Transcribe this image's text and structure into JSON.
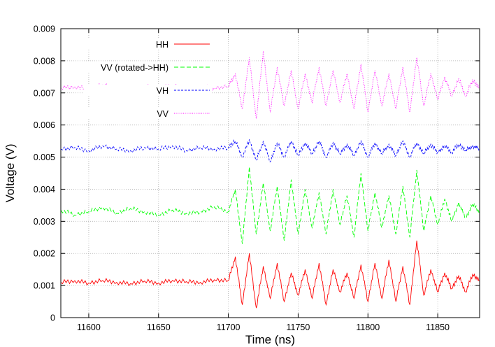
{
  "chart_data": {
    "type": "line",
    "xlabel": "Time (ns)",
    "ylabel": "Voltage (V)",
    "xlim": [
      11580,
      11880
    ],
    "ylim": [
      0,
      0.009
    ],
    "x_ticks": [
      {
        "value": 11600,
        "label": "11600"
      },
      {
        "value": 11650,
        "label": "11650"
      },
      {
        "value": 11700,
        "label": "11700"
      },
      {
        "value": 11750,
        "label": "11750"
      },
      {
        "value": 11800,
        "label": "11800"
      },
      {
        "value": 11850,
        "label": "11850"
      }
    ],
    "y_ticks": [
      {
        "value": 0,
        "label": "0"
      },
      {
        "value": 0.001,
        "label": "0.001"
      },
      {
        "value": 0.002,
        "label": "0.002"
      },
      {
        "value": 0.003,
        "label": "0.003"
      },
      {
        "value": 0.004,
        "label": "0.004"
      },
      {
        "value": 0.005,
        "label": "0.005"
      },
      {
        "value": 0.006,
        "label": "0.006"
      },
      {
        "value": 0.007,
        "label": "0.007"
      },
      {
        "value": 0.008,
        "label": "0.008"
      },
      {
        "value": 0.009,
        "label": "0.009"
      }
    ],
    "grid": true,
    "legend_position": "top-left",
    "x": [
      11580,
      11590,
      11600,
      11610,
      11620,
      11630,
      11640,
      11650,
      11660,
      11670,
      11680,
      11690,
      11700,
      11705,
      11710,
      11715,
      11720,
      11725,
      11730,
      11735,
      11740,
      11745,
      11750,
      11755,
      11760,
      11765,
      11770,
      11775,
      11780,
      11785,
      11790,
      11795,
      11800,
      11805,
      11810,
      11815,
      11820,
      11825,
      11830,
      11835,
      11840,
      11845,
      11850,
      11855,
      11860,
      11865,
      11870,
      11875,
      11880
    ],
    "series": [
      {
        "name": "HH",
        "color": "#ff0000",
        "dash": "solid",
        "values": [
          0.0011,
          0.00115,
          0.00108,
          0.00116,
          0.0011,
          0.00106,
          0.00114,
          0.00108,
          0.00116,
          0.00112,
          0.0011,
          0.00118,
          0.00115,
          0.0019,
          0.0004,
          0.002,
          0.0003,
          0.0016,
          0.0006,
          0.0017,
          0.0005,
          0.0014,
          0.0007,
          0.0015,
          0.0006,
          0.0017,
          0.0004,
          0.0015,
          0.0008,
          0.0014,
          0.0006,
          0.00165,
          0.0005,
          0.0017,
          0.0006,
          0.0018,
          0.0005,
          0.0016,
          0.0004,
          0.0024,
          0.0007,
          0.0015,
          0.0008,
          0.0014,
          0.0009,
          0.0013,
          0.0008,
          0.00135,
          0.00115
        ]
      },
      {
        "name": "VV (rotated->HH)",
        "color": "#00ff00",
        "dash": "dashed",
        "values": [
          0.00335,
          0.0032,
          0.0033,
          0.00345,
          0.00325,
          0.0034,
          0.0033,
          0.0032,
          0.00335,
          0.00325,
          0.0033,
          0.00345,
          0.0033,
          0.004,
          0.0023,
          0.0047,
          0.0026,
          0.0042,
          0.0027,
          0.0041,
          0.0024,
          0.0043,
          0.0026,
          0.004,
          0.0028,
          0.0039,
          0.0026,
          0.004,
          0.0029,
          0.0038,
          0.0025,
          0.0045,
          0.0027,
          0.0039,
          0.0028,
          0.0038,
          0.0026,
          0.0041,
          0.0025,
          0.0046,
          0.0027,
          0.0038,
          0.0029,
          0.0037,
          0.003,
          0.0036,
          0.0031,
          0.00355,
          0.0033
        ]
      },
      {
        "name": "VH",
        "color": "#0000ff",
        "dash": "short-dash",
        "values": [
          0.00525,
          0.0053,
          0.0052,
          0.00535,
          0.00525,
          0.0052,
          0.0053,
          0.00525,
          0.00535,
          0.0052,
          0.0053,
          0.00525,
          0.0053,
          0.0055,
          0.005,
          0.00555,
          0.0049,
          0.0055,
          0.00485,
          0.00545,
          0.005,
          0.0055,
          0.00505,
          0.00545,
          0.0051,
          0.0055,
          0.005,
          0.00545,
          0.0051,
          0.0054,
          0.00505,
          0.0055,
          0.005,
          0.00545,
          0.0051,
          0.0054,
          0.00505,
          0.0055,
          0.005,
          0.00545,
          0.0051,
          0.0054,
          0.00515,
          0.00535,
          0.00515,
          0.0054,
          0.0052,
          0.00535,
          0.00525
        ]
      },
      {
        "name": "VV",
        "color": "#ff00ff",
        "dash": "dotted",
        "values": [
          0.00715,
          0.0072,
          0.0071,
          0.00725,
          0.00715,
          0.0071,
          0.0072,
          0.00715,
          0.00725,
          0.0071,
          0.0072,
          0.00715,
          0.0072,
          0.0076,
          0.0065,
          0.0081,
          0.0062,
          0.0083,
          0.0064,
          0.0078,
          0.0066,
          0.0077,
          0.0065,
          0.0076,
          0.0067,
          0.0078,
          0.0066,
          0.0077,
          0.0067,
          0.0076,
          0.0065,
          0.0079,
          0.0064,
          0.0077,
          0.0066,
          0.0076,
          0.0065,
          0.0078,
          0.0064,
          0.0081,
          0.0066,
          0.0076,
          0.0068,
          0.0075,
          0.0069,
          0.00745,
          0.0069,
          0.0074,
          0.00715
        ]
      }
    ]
  }
}
